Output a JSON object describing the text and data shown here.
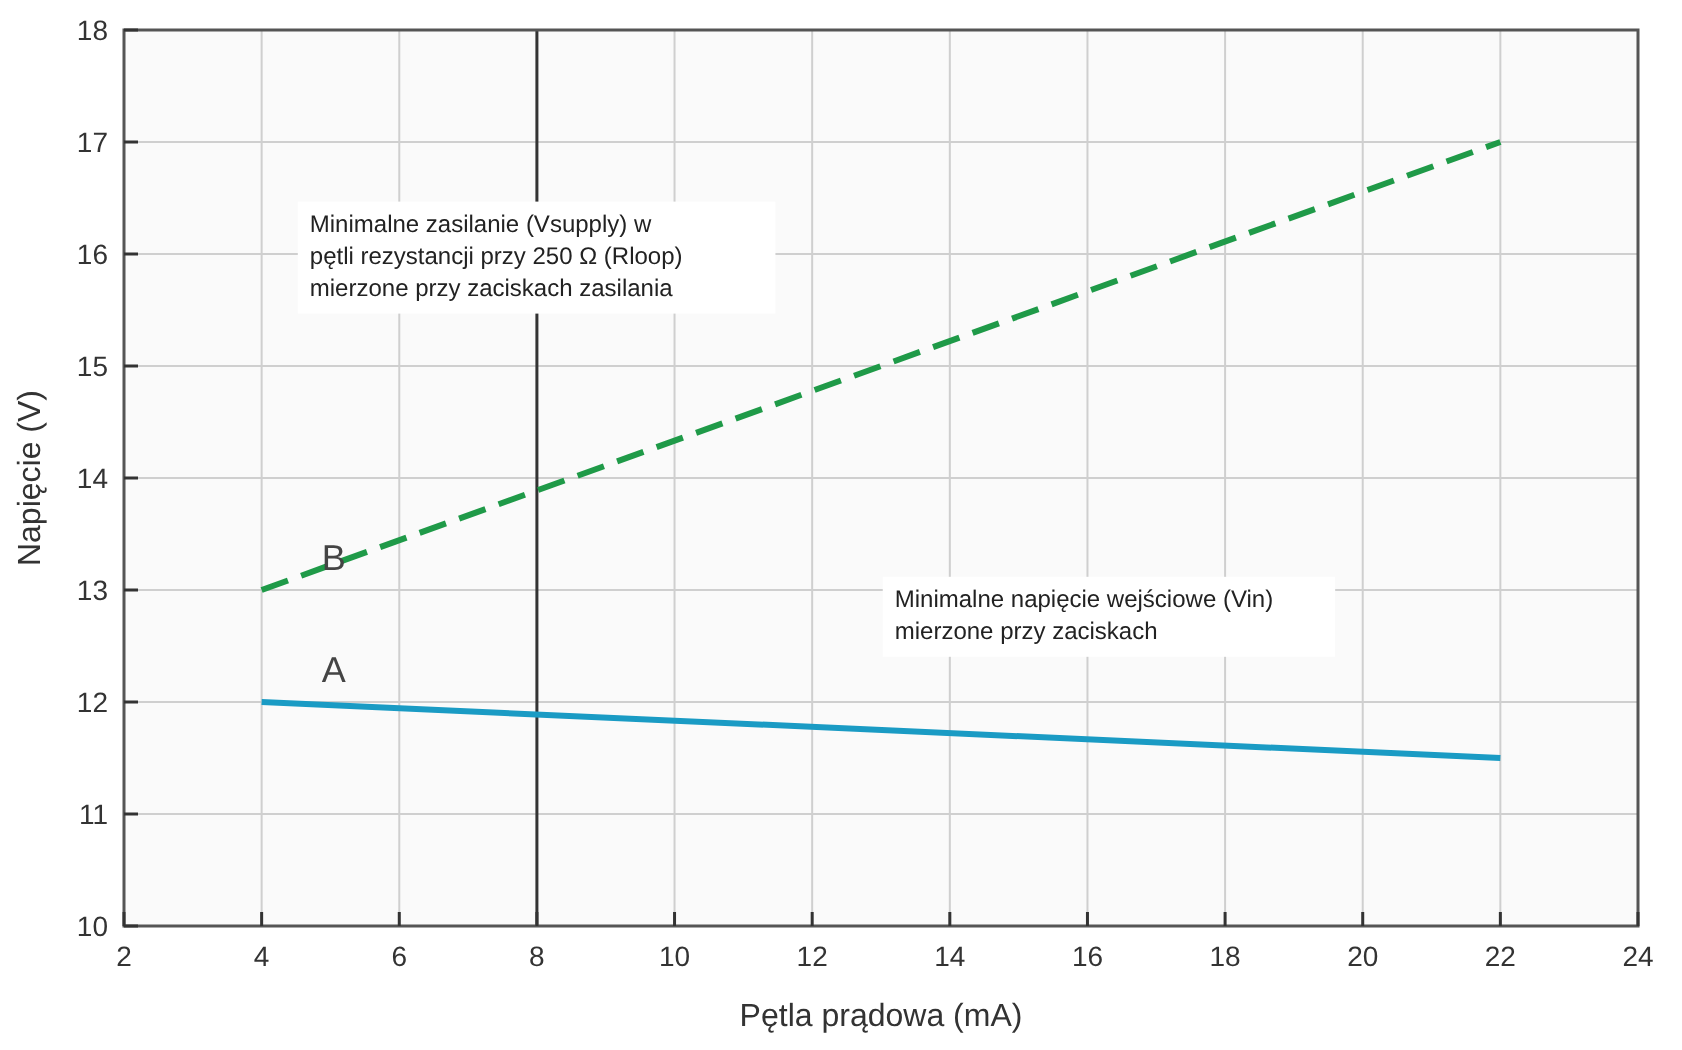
{
  "chart_data": {
    "type": "line",
    "xlabel": "Pętla prądowa (mA)",
    "ylabel": "Napięcie (V)",
    "x": [
      4,
      22
    ],
    "series": [
      {
        "name": "A",
        "color": "#1a9bc4",
        "values": [
          12,
          11.5
        ],
        "line_style": "solid"
      },
      {
        "name": "B",
        "color": "#1f9a48",
        "values": [
          13,
          17
        ],
        "line_style": "dashed"
      }
    ],
    "xlim": [
      2,
      24
    ],
    "xticks": [
      2,
      4,
      6,
      8,
      10,
      12,
      14,
      16,
      18,
      20,
      22,
      24
    ],
    "ylim": [
      10,
      18
    ],
    "yticks": [
      10,
      11,
      12,
      13,
      14,
      15,
      16,
      17,
      18
    ],
    "grid": true,
    "marker": "none",
    "ref_lines": [
      {
        "axis": "x",
        "value": 8,
        "color": "#333333"
      }
    ],
    "annotations": [
      "Minimalne zasilanie (Vsupply) w pętli rezystancji przy 250 Ω (Rloop) mierzone przy zaciskach zasilania",
      "Minimalne napięcie wejściowe (Vin) mierzone przy zaciskach"
    ]
  }
}
